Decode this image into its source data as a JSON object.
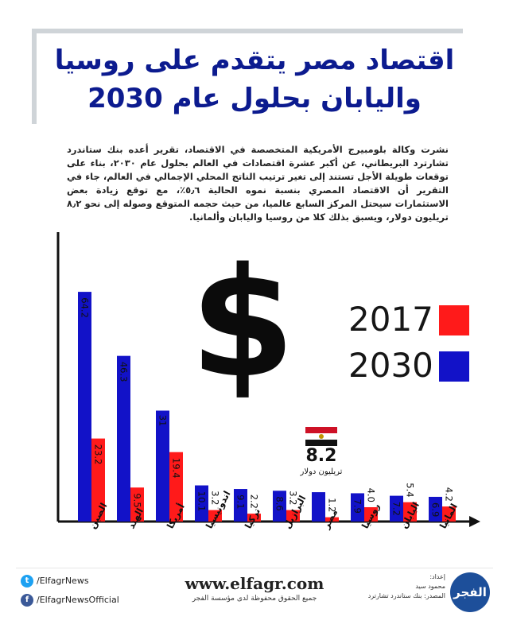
{
  "header": {
    "title_line1": "اقتصاد مصر يتقدم على روسيا",
    "title_line2": "واليابان بحلول عام 2030"
  },
  "intro": "نشرت وكالة بلومبيرج الأمريكية المتخصصة في الاقتصاد، تقرير أعده بنك ستاندرد تشارترد البريطاني، عن أكبر عشرة اقتصادات في العالم بحلول عام ٢٠٣٠، بناء على توقعات طويلة الأجل تستند إلى تغير ترتيب الناتج المحلي الإجمالي في العالم، جاء في التقرير أن الاقتصاد المصري بنسبة نموه الحالية ٥٫٦٪، مع توقع زيادة بعض الاستثمارات سيحتل المركز السابع عالميا، من حيث حجمه المتوقع وصوله إلى نحو ٨٫٢ تريليون دولار، ويسبق بذلك كلا من روسيا واليابان وألمانيا.",
  "decoration": {
    "dollar_symbol": "$"
  },
  "annotation": {
    "value": "8.2",
    "unit": "تريليون دولار"
  },
  "colors": {
    "series_2017": "#ff1a1a",
    "series_2030": "#1212c8",
    "title": "#0c1b8f",
    "flag_red": "#ce1126",
    "flag_white": "#ffffff",
    "flag_black": "#111111",
    "flag_eagle": "#c09300"
  },
  "chart_data": {
    "type": "bar",
    "categories": [
      "الصين",
      "الهند",
      "أمريكا",
      "اندونيسيا",
      "تركيا",
      "البرازيل",
      "مصر",
      "روسيا",
      "اليابان",
      "المانيا"
    ],
    "series": [
      {
        "name": "2030",
        "values": [
          64.2,
          46.3,
          31,
          10.1,
          9.1,
          8.6,
          8.2,
          7.9,
          7.2,
          6.9
        ],
        "labels": [
          "64.2",
          "46.3",
          "31",
          "10.1",
          "9.1",
          "8.6",
          "",
          "7.9",
          "7.2",
          "6.9"
        ]
      },
      {
        "name": "2017",
        "values": [
          23.2,
          9.5,
          19.4,
          3.2,
          2.2,
          3.2,
          1.2,
          4.0,
          5.4,
          4.2
        ],
        "labels": [
          "23.2",
          "9.5",
          "19.4",
          "3.2",
          "2.2",
          "3.2",
          "1.2",
          "4.0",
          "5.4",
          "4.2"
        ]
      }
    ],
    "legend_position": "right",
    "grid": false
  },
  "footer": {
    "twitter": "/ElfagrNews",
    "facebook": "/ElfagrNewsOfficial",
    "website": "www.elfagr.com",
    "rights": "جميع الحقوق محفوظة لدى مؤسسة الفجر",
    "prepared_label": "إعداد:",
    "prepared_by": "محمود سيد",
    "source": "المصدر: بنك ستاندرد تشارترد",
    "logo_text": "الفجر"
  }
}
